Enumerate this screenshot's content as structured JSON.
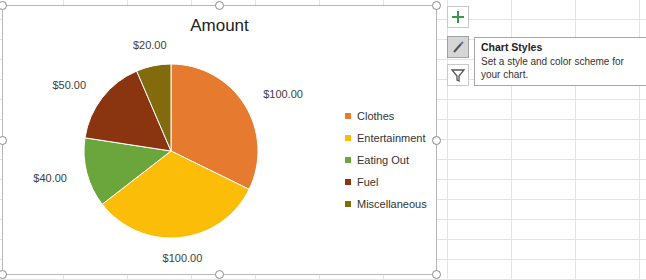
{
  "chart_data": {
    "type": "pie",
    "title": "Amount",
    "categories": [
      "Clothes",
      "Entertainment",
      "Eating Out",
      "Fuel",
      "Miscellaneous"
    ],
    "values": [
      100,
      100,
      40,
      50,
      20
    ],
    "value_labels": [
      "$100.00",
      "$100.00",
      "$40.00",
      "$50.00",
      "$20.00"
    ],
    "colors": [
      "#e67b2f",
      "#fbbd07",
      "#6aa63c",
      "#8a3510",
      "#836a0c"
    ],
    "data_labels": true,
    "legend": "right"
  },
  "ui": {
    "tooltip": {
      "title": "Chart Styles",
      "text": "Set a style and color scheme for your chart."
    }
  }
}
